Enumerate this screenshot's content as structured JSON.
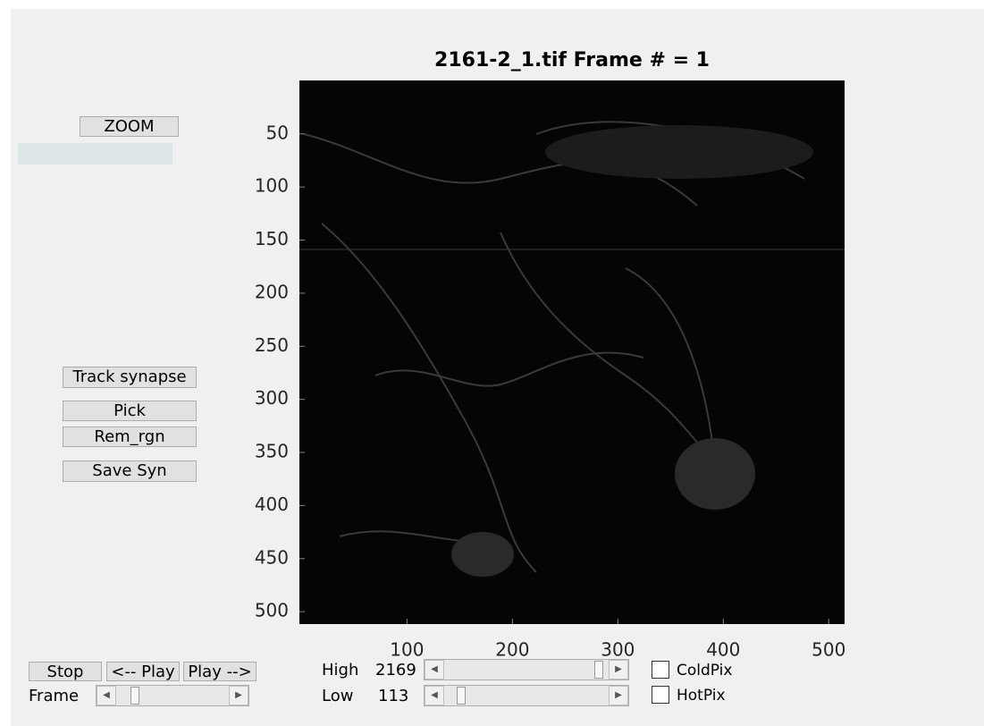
{
  "title": "2161-2_1.tif Frame # = 1",
  "axes": {
    "xlim": [
      0.5,
      512.5
    ],
    "ylim": [
      0.5,
      512.5
    ],
    "xticks": [
      100,
      200,
      300,
      400,
      500
    ],
    "yticks": [
      50,
      100,
      150,
      200,
      250,
      300,
      350,
      400,
      450,
      500
    ]
  },
  "buttons": {
    "zoom": "ZOOM",
    "track": "Track synapse",
    "pick": "Pick",
    "rem": "Rem_rgn",
    "save": "Save Syn",
    "stop": "Stop",
    "play_back": "<-- Play",
    "play_fwd": "Play -->"
  },
  "controls": {
    "frame_label": "Frame",
    "high_label": "High",
    "high_value": "2169",
    "low_label": "Low",
    "low_value": "113",
    "coldpix": "ColdPix",
    "hotpix": "HotPix"
  }
}
